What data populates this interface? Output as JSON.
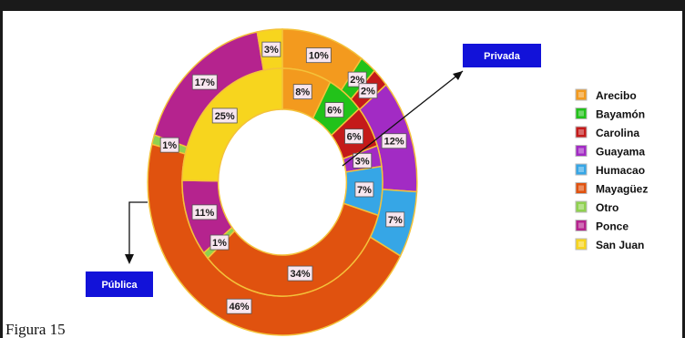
{
  "chart_data": {
    "type": "donut",
    "legend_position": "right",
    "series": [
      {
        "name": "Privada",
        "ring": "inner",
        "values": [
          8,
          6,
          6,
          3,
          7,
          34,
          1,
          11,
          25
        ],
        "labels": [
          "8%",
          "6%",
          "6%",
          "3%",
          "7%",
          "34%",
          "1%",
          "11%",
          "25%"
        ]
      },
      {
        "name": "Pública",
        "ring": "outer",
        "values": [
          10,
          2,
          2,
          12,
          7,
          46,
          1,
          17,
          3
        ],
        "labels": [
          "10%",
          "2%",
          "2%",
          "12%",
          "7%",
          "46%",
          "1%",
          "17%",
          "3%"
        ]
      }
    ],
    "categories": [
      "Arecibo",
      "Bayamón",
      "Carolina",
      "Guayama",
      "Humacao",
      "Mayagüez",
      "Otro",
      "Ponce",
      "San Juan"
    ],
    "colors": [
      "#f39a1e",
      "#22c21a",
      "#c41a1a",
      "#a22bc4",
      "#36a6e6",
      "#e0520f",
      "#8fd14f",
      "#b5238e",
      "#f7d51e"
    ],
    "callouts": {
      "privada": "Privada",
      "publica": "Pública"
    }
  },
  "caption": "Figura 15"
}
